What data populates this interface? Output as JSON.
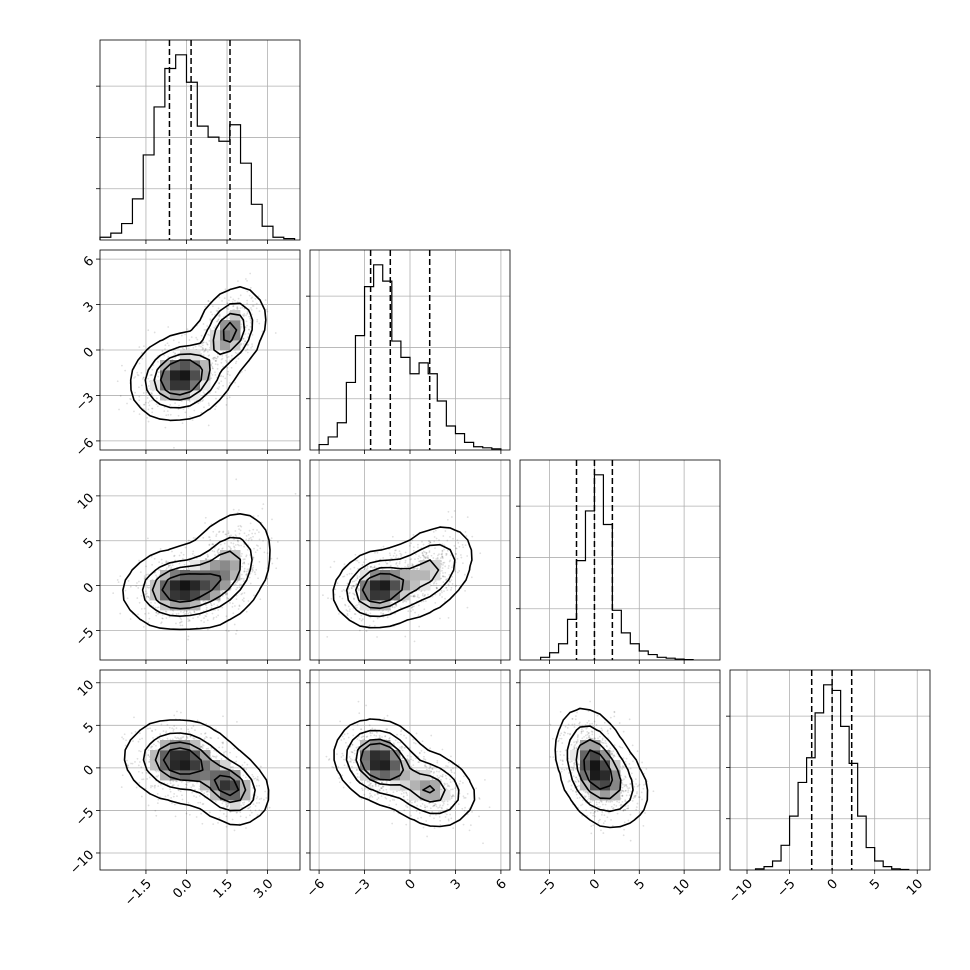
{
  "chart_data": {
    "type": "corner",
    "parameters": 4,
    "style": {
      "color": "#000000",
      "point_color": "#9a9a9a",
      "grid": true,
      "quantile_line": "dashed"
    },
    "axes": [
      {
        "range": [
          -3.2,
          4.2
        ],
        "ticks": [
          -1.5,
          0.0,
          1.5,
          3.0
        ],
        "tick_labels": [
          "−1.5",
          "0.0",
          "1.5",
          "3.0"
        ]
      },
      {
        "range": [
          -6.6,
          6.6
        ],
        "ticks": [
          -6,
          -3,
          0,
          3,
          6
        ],
        "tick_labels": [
          "−6",
          "−3",
          "0",
          "3",
          "6"
        ]
      },
      {
        "range": [
          -8.3,
          14.0
        ],
        "ticks": [
          -5,
          0,
          5,
          10
        ],
        "tick_labels": [
          "−5",
          "0",
          "5",
          "10"
        ]
      },
      {
        "range": [
          -12.0,
          11.5
        ],
        "ticks": [
          -10,
          -5,
          0,
          5,
          10
        ],
        "tick_labels": [
          "−10",
          "−5",
          "0",
          "5",
          "10"
        ]
      }
    ],
    "marginals": [
      {
        "param": 0,
        "quantiles": [
          -0.63,
          0.17,
          1.61
        ],
        "bins": [
          -3.2,
          -2.8,
          -2.4,
          -2.0,
          -1.6,
          -1.2,
          -0.8,
          -0.4,
          0.0,
          0.4,
          0.8,
          1.2,
          1.6,
          2.0,
          2.4,
          2.8,
          3.2,
          3.6,
          4.0
        ],
        "counts": [
          2,
          5,
          12,
          30,
          62,
          97,
          125,
          135,
          115,
          83,
          75,
          72,
          84,
          56,
          26,
          10,
          2,
          1
        ]
      },
      {
        "param": 1,
        "quantiles": [
          -2.6,
          -1.3,
          1.3
        ],
        "bins": [
          -6.0,
          -5.4,
          -4.8,
          -4.2,
          -3.6,
          -3.0,
          -2.4,
          -1.8,
          -1.2,
          -0.6,
          0.0,
          0.6,
          1.2,
          1.8,
          2.4,
          3.0,
          3.6,
          4.2,
          4.8,
          5.4,
          6.0
        ],
        "counts": [
          5,
          12,
          25,
          62,
          105,
          150,
          170,
          155,
          100,
          85,
          70,
          80,
          70,
          45,
          22,
          15,
          7,
          3,
          2,
          1
        ]
      },
      {
        "param": 2,
        "quantiles": [
          -2.0,
          0.0,
          2.0
        ],
        "bins": [
          -6.0,
          -5.0,
          -4.0,
          -3.0,
          -2.0,
          -1.0,
          0.0,
          1.0,
          2.0,
          3.0,
          4.0,
          5.0,
          6.0,
          7.0,
          8.0,
          9.0,
          10.0,
          11.0
        ],
        "counts": [
          3,
          8,
          18,
          45,
          110,
          165,
          205,
          150,
          55,
          30,
          18,
          10,
          6,
          3,
          2,
          1,
          0.5
        ]
      },
      {
        "param": 3,
        "quantiles": [
          -2.4,
          0.0,
          2.3
        ],
        "bins": [
          -9,
          -8,
          -7,
          -6,
          -5,
          -4,
          -3,
          -2,
          -1,
          0,
          1,
          2,
          3,
          4,
          5,
          6,
          7,
          8,
          9
        ],
        "counts": [
          1,
          3,
          8,
          22,
          48,
          78,
          100,
          140,
          165,
          160,
          128,
          95,
          48,
          20,
          8,
          3,
          1,
          0.5
        ]
      }
    ],
    "density_2d": [
      {
        "x": 0,
        "y": 1,
        "components": [
          {
            "mean": [
              -0.2,
              -1.8
            ],
            "sd": [
              0.75,
              1.15
            ],
            "rho": 0.15,
            "weight": 0.65
          },
          {
            "mean": [
              1.6,
              1.2
            ],
            "sd": [
              0.55,
              1.25
            ],
            "rho": 0.3,
            "weight": 0.35
          }
        ]
      },
      {
        "x": 0,
        "y": 2,
        "components": [
          {
            "mean": [
              -0.2,
              -0.3
            ],
            "sd": [
              0.85,
              1.8
            ],
            "rho": 0.1,
            "weight": 0.6
          },
          {
            "mean": [
              1.5,
              2.0
            ],
            "sd": [
              0.7,
              2.6
            ],
            "rho": 0.3,
            "weight": 0.4
          }
        ]
      },
      {
        "x": 0,
        "y": 3,
        "components": [
          {
            "mean": [
              -0.2,
              0.8
            ],
            "sd": [
              0.85,
              2.0
            ],
            "rho": -0.1,
            "weight": 0.65
          },
          {
            "mean": [
              1.6,
              -2.3
            ],
            "sd": [
              0.6,
              1.8
            ],
            "rho": -0.2,
            "weight": 0.35
          }
        ]
      },
      {
        "x": 1,
        "y": 2,
        "components": [
          {
            "mean": [
              -2.0,
              -0.3
            ],
            "sd": [
              1.2,
              1.7
            ],
            "rho": 0.15,
            "weight": 0.6
          },
          {
            "mean": [
              1.2,
              1.6
            ],
            "sd": [
              1.3,
              2.2
            ],
            "rho": 0.35,
            "weight": 0.4
          }
        ]
      },
      {
        "x": 1,
        "y": 3,
        "components": [
          {
            "mean": [
              -2.0,
              0.8
            ],
            "sd": [
              1.2,
              2.0
            ],
            "rho": -0.15,
            "weight": 0.62
          },
          {
            "mean": [
              1.3,
              -2.5
            ],
            "sd": [
              1.3,
              1.9
            ],
            "rho": -0.2,
            "weight": 0.38
          }
        ]
      },
      {
        "x": 2,
        "y": 3,
        "components": [
          {
            "mean": [
              -0.1,
              0.2
            ],
            "sd": [
              1.7,
              2.8
            ],
            "rho": -0.3,
            "weight": 0.75
          },
          {
            "mean": [
              2.2,
              -1.8
            ],
            "sd": [
              1.8,
              2.2
            ],
            "rho": -0.3,
            "weight": 0.25
          }
        ]
      }
    ],
    "contour_levels": [
      0.3,
      0.55,
      0.8,
      0.96
    ]
  }
}
